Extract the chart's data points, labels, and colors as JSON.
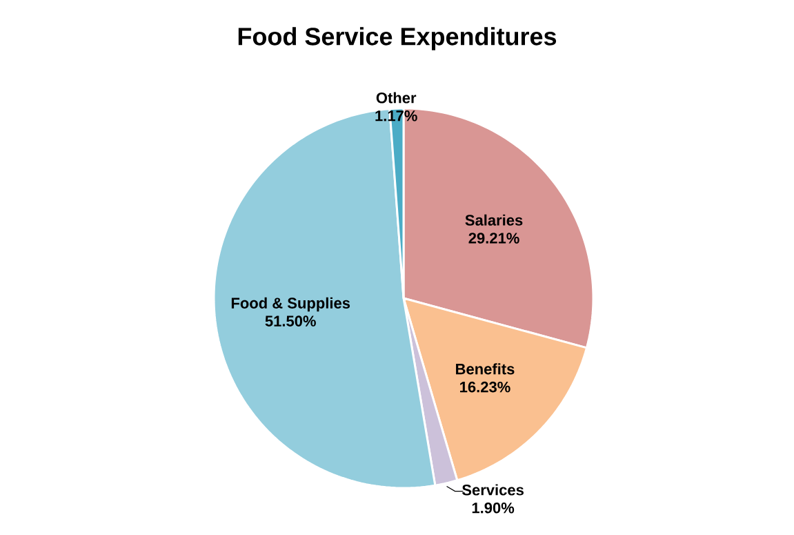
{
  "chart_data": {
    "type": "pie",
    "title": "Food Service Expenditures",
    "categories": [
      "Salaries",
      "Benefits",
      "Services",
      "Food & Supplies",
      "Other"
    ],
    "values": [
      29.21,
      16.23,
      1.9,
      51.5,
      1.17
    ],
    "colors": [
      "#d99694",
      "#fac090",
      "#ccc1da",
      "#93cddd",
      "#4bacc6"
    ],
    "value_labels": [
      "29.21%",
      "16.23%",
      "1.90%",
      "51.50%",
      "1.17%"
    ]
  }
}
